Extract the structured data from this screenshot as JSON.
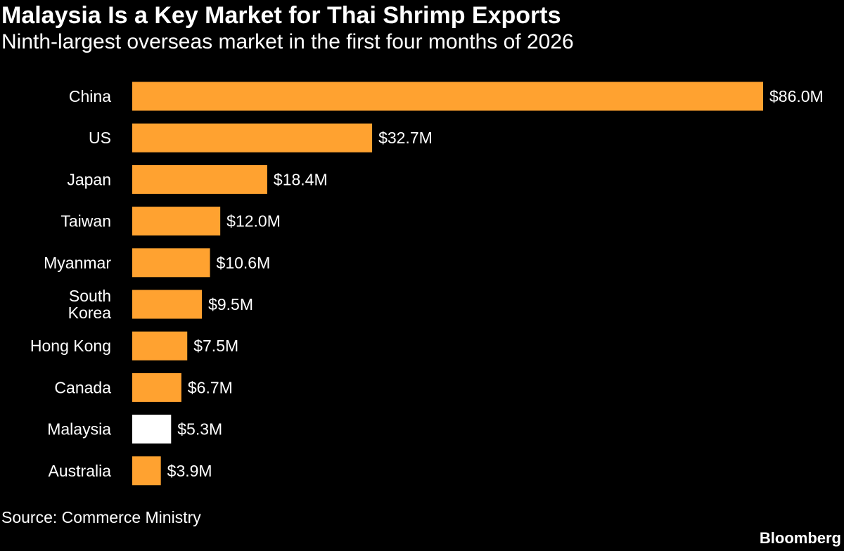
{
  "header": {
    "title": "Malaysia Is a Key Market for Thai Shrimp Exports",
    "subtitle": "Ninth-largest overseas market in the first four months of 2026"
  },
  "footer": {
    "source": "Source: Commerce Ministry",
    "brand": "Bloomberg"
  },
  "colors": {
    "bar": "#ffa230",
    "highlight": "#ffffff",
    "background": "#000000",
    "text": "#ffffff"
  },
  "chart_data": {
    "type": "bar",
    "orientation": "horizontal",
    "title": "Malaysia Is a Key Market for Thai Shrimp Exports",
    "subtitle": "Ninth-largest overseas market in the first four months of 2026",
    "categories": [
      "China",
      "US",
      "Japan",
      "Taiwan",
      "Myanmar",
      "South Korea",
      "Hong Kong",
      "Canada",
      "Malaysia",
      "Australia"
    ],
    "values": [
      86.0,
      32.7,
      18.4,
      12.0,
      10.6,
      9.5,
      7.5,
      6.7,
      5.3,
      3.9
    ],
    "value_labels": [
      "$86.0M",
      "$32.7M",
      "$18.4M",
      "$12.0M",
      "$10.6M",
      "$9.5M",
      "$7.5M",
      "$6.7M",
      "$5.3M",
      "$3.9M"
    ],
    "highlight": "Malaysia",
    "xlim": [
      0,
      86.0
    ],
    "grid": false,
    "legend": "none",
    "source": "Source: Commerce Ministry"
  }
}
